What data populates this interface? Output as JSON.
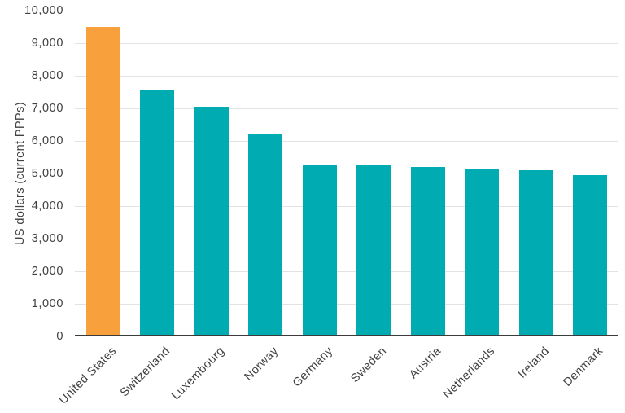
{
  "chart_data": {
    "type": "bar",
    "title": "",
    "xlabel": "",
    "ylabel": "US dollars (current PPPs)",
    "categories": [
      "United States",
      "Switzerland",
      "Luxembourg",
      "Norway",
      "Germany",
      "Sweden",
      "Austria",
      "Netherlands",
      "Ireland",
      "Denmark"
    ],
    "values": [
      9500,
      7550,
      7050,
      6230,
      5280,
      5240,
      5190,
      5150,
      5100,
      4950
    ],
    "ylim": [
      0,
      10000
    ],
    "ytick_step": 1000,
    "ytick_labels": [
      "0",
      "1,000",
      "2,000",
      "3,000",
      "4,000",
      "5,000",
      "6,000",
      "7,000",
      "8,000",
      "9,000",
      "10,000"
    ],
    "grid": true,
    "legend": false,
    "highlight_index": 0,
    "colors": {
      "highlight_bar": "#F8A13C",
      "bar": "#00ABB2",
      "gridline": "#E2E2E2",
      "axis_line": "#3B3B3B",
      "text": "#414042",
      "background": "#FFFFFF"
    }
  }
}
